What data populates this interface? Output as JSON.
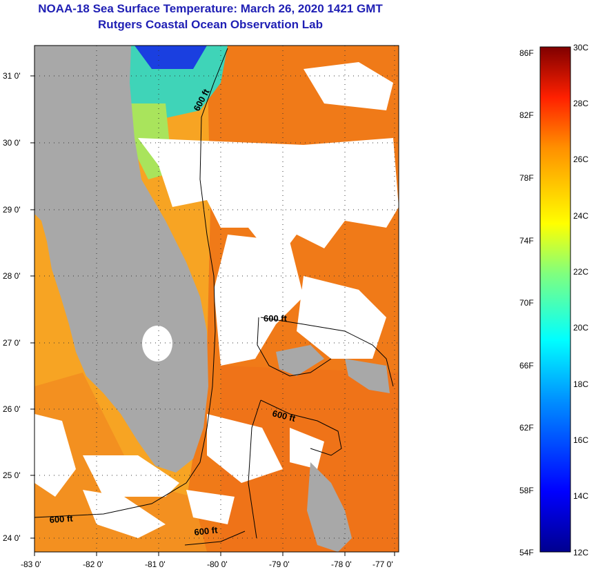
{
  "header": {
    "title": "NOAA-18 Sea Surface Temperature:  March 26, 2020 1421 GMT",
    "subtitle": "Rutgers Coastal Ocean Observation Lab"
  },
  "map": {
    "lat_labels": [
      "31 0'",
      "30 0'",
      "29 0'",
      "28 0'",
      "27 0'",
      "26 0'",
      "25 0'",
      "24 0'"
    ],
    "lon_labels": [
      "-83 0'",
      "-82 0'",
      "-81 0'",
      "-80 0'",
      "-79 0'",
      "-78 0'",
      "-77 0'"
    ],
    "contour_labels": [
      "600 ft",
      "600 ft",
      "600 ft",
      "600 ft",
      "600 ft"
    ],
    "colors": {
      "land": "#a8a8a8",
      "cloud": "#ffffff",
      "warm_water": "#f27a16",
      "mid_water": "#f8b51f",
      "cool_water": "#2ec8e0"
    }
  },
  "colorbar": {
    "fahrenheit_labels": [
      "86F",
      "82F",
      "78F",
      "74F",
      "70F",
      "66F",
      "62F",
      "58F",
      "54F"
    ],
    "celsius_labels": [
      "30C",
      "28C",
      "26C",
      "24C",
      "22C",
      "20C",
      "18C",
      "16C",
      "14C",
      "12C"
    ]
  }
}
